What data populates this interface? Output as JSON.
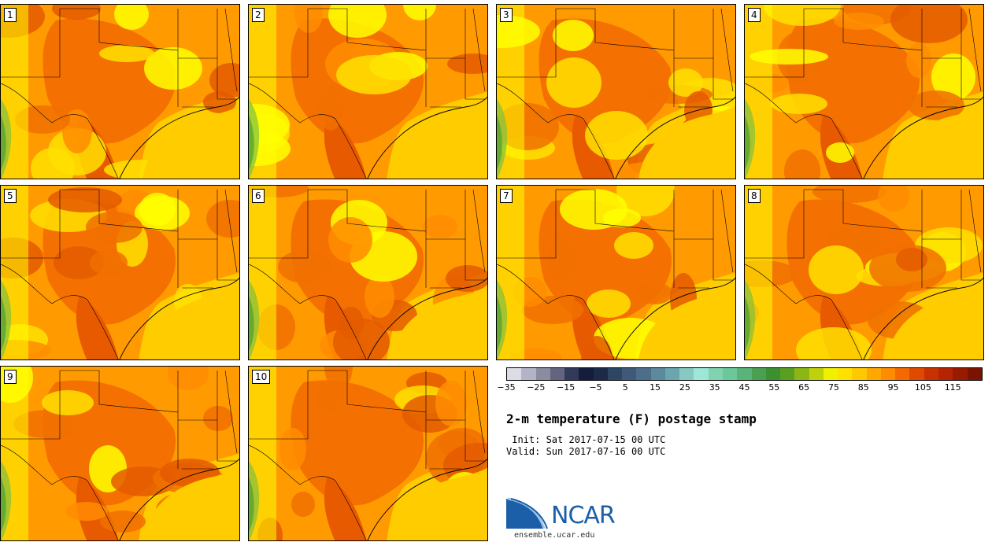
{
  "panels": [
    {
      "label": "1"
    },
    {
      "label": "2"
    },
    {
      "label": "3"
    },
    {
      "label": "4"
    },
    {
      "label": "5"
    },
    {
      "label": "6"
    },
    {
      "label": "7"
    },
    {
      "label": "8"
    },
    {
      "label": "9"
    },
    {
      "label": "10"
    }
  ],
  "colorbar": {
    "colors": [
      "#dcdce6",
      "#b4b4c8",
      "#8c8ca0",
      "#64647e",
      "#323a5a",
      "#141e3c",
      "#1c2a48",
      "#2e4664",
      "#3e5a78",
      "#4c6e8a",
      "#5a8a9c",
      "#6aa6ac",
      "#86c8c2",
      "#9ee6d6",
      "#80d2b0",
      "#6ac89a",
      "#5ab478",
      "#4aa050",
      "#3c9030",
      "#5aa020",
      "#8cb614",
      "#c0d00a",
      "#f0f000",
      "#ffe000",
      "#ffc800",
      "#ffa800",
      "#ff8c00",
      "#f46a00",
      "#e04a00",
      "#c83200",
      "#b42400",
      "#9a1a00",
      "#7a1400"
    ],
    "tick_labels": [
      "−35",
      "−25",
      "−15",
      "−5",
      "5",
      "15",
      "25",
      "35",
      "45",
      "55",
      "65",
      "75",
      "85",
      "95",
      "105",
      "115"
    ],
    "range": [
      -35,
      125
    ]
  },
  "title": "2-m temperature (F) postage stamp",
  "init_line": " Init: Sat 2017-07-15 00 UTC",
  "valid_line": "Valid: Sun 2017-07-16 00 UTC",
  "logo_text": "NCAR",
  "site": "ensemble.ucar.edu"
}
